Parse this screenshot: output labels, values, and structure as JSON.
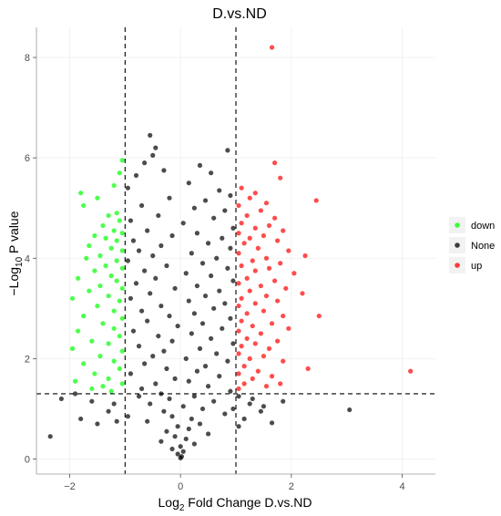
{
  "chart_data": {
    "type": "scatter",
    "title": "D.vs.ND",
    "xlabel": {
      "prefix": "Log",
      "sub": "2",
      "suffix": " Fold Change D.vs.ND"
    },
    "ylabel": {
      "prefix": "−Log",
      "sub": "10",
      "suffix": " P value"
    },
    "xlim": [
      -2.6,
      4.6
    ],
    "ylim": [
      -0.3,
      8.6
    ],
    "x_ticks": [
      -2,
      0,
      2,
      4
    ],
    "x_tick_labels": [
      "−2",
      "0",
      "2",
      "4"
    ],
    "y_ticks": [
      0,
      2,
      4,
      6,
      8
    ],
    "y_tick_labels": [
      "0",
      "2",
      "4",
      "6",
      "8"
    ],
    "grid": true,
    "fc_thresholds": [
      -1,
      1
    ],
    "p_threshold": 1.3,
    "legend_position": "right",
    "legend": [
      {
        "label": "down",
        "color": "#00ff00"
      },
      {
        "label": "None",
        "color": "#000000"
      },
      {
        "label": "up",
        "color": "#ff0000"
      }
    ],
    "series": [
      {
        "name": "down",
        "color": "#00ff00",
        "points": [
          [
            -1.05,
            5.95
          ],
          [
            -1.1,
            5.7
          ],
          [
            -1.2,
            5.45
          ],
          [
            -1.8,
            5.3
          ],
          [
            -1.5,
            5.2
          ],
          [
            -1.75,
            5.05
          ],
          [
            -1.15,
            4.9
          ],
          [
            -1.3,
            4.85
          ],
          [
            -1.1,
            4.75
          ],
          [
            -1.4,
            4.65
          ],
          [
            -1.2,
            4.55
          ],
          [
            -1.05,
            4.5
          ],
          [
            -1.55,
            4.45
          ],
          [
            -1.35,
            4.4
          ],
          [
            -1.15,
            4.35
          ],
          [
            -1.65,
            4.25
          ],
          [
            -1.25,
            4.2
          ],
          [
            -1.05,
            4.15
          ],
          [
            -1.45,
            4.05
          ],
          [
            -1.7,
            4.0
          ],
          [
            -1.15,
            3.95
          ],
          [
            -1.35,
            3.85
          ],
          [
            -1.05,
            3.8
          ],
          [
            -1.55,
            3.75
          ],
          [
            -1.25,
            3.65
          ],
          [
            -1.85,
            3.6
          ],
          [
            -1.15,
            3.55
          ],
          [
            -1.45,
            3.45
          ],
          [
            -1.05,
            3.4
          ],
          [
            -1.65,
            3.35
          ],
          [
            -1.3,
            3.25
          ],
          [
            -1.95,
            3.2
          ],
          [
            -1.1,
            3.15
          ],
          [
            -1.5,
            3.05
          ],
          [
            -1.2,
            2.95
          ],
          [
            -1.75,
            2.85
          ],
          [
            -1.05,
            2.8
          ],
          [
            -1.4,
            2.7
          ],
          [
            -1.2,
            2.6
          ],
          [
            -1.85,
            2.55
          ],
          [
            -1.1,
            2.45
          ],
          [
            -1.6,
            2.35
          ],
          [
            -1.3,
            2.3
          ],
          [
            -1.95,
            2.2
          ],
          [
            -1.05,
            2.15
          ],
          [
            -1.45,
            2.05
          ],
          [
            -1.2,
            1.95
          ],
          [
            -1.75,
            1.9
          ],
          [
            -1.1,
            1.8
          ],
          [
            -1.55,
            1.7
          ],
          [
            -1.3,
            1.6
          ],
          [
            -1.9,
            1.55
          ],
          [
            -1.05,
            1.5
          ],
          [
            -1.4,
            1.45
          ],
          [
            -1.6,
            1.4
          ],
          [
            -1.25,
            1.35
          ]
        ]
      },
      {
        "name": "None",
        "color": "#000000",
        "points": [
          [
            -0.55,
            6.45
          ],
          [
            -0.45,
            6.2
          ],
          [
            0.85,
            6.15
          ],
          [
            -0.5,
            6.05
          ],
          [
            -0.65,
            5.9
          ],
          [
            0.35,
            5.85
          ],
          [
            -0.3,
            5.75
          ],
          [
            0.55,
            5.7
          ],
          [
            -0.8,
            5.65
          ],
          [
            0.15,
            5.5
          ],
          [
            -0.95,
            5.4
          ],
          [
            0.7,
            5.35
          ],
          [
            0.9,
            5.25
          ],
          [
            -0.2,
            5.2
          ],
          [
            0.45,
            5.15
          ],
          [
            -0.7,
            5.05
          ],
          [
            0.25,
            5.0
          ],
          [
            0.8,
            4.95
          ],
          [
            -0.4,
            4.85
          ],
          [
            0.6,
            4.8
          ],
          [
            -0.9,
            4.75
          ],
          [
            0.05,
            4.7
          ],
          [
            0.95,
            4.6
          ],
          [
            -0.6,
            4.55
          ],
          [
            0.3,
            4.5
          ],
          [
            -0.15,
            4.45
          ],
          [
            0.75,
            4.4
          ],
          [
            -0.85,
            4.35
          ],
          [
            0.5,
            4.3
          ],
          [
            -0.35,
            4.25
          ],
          [
            0.9,
            4.2
          ],
          [
            -0.75,
            4.15
          ],
          [
            0.2,
            4.1
          ],
          [
            -0.5,
            4.05
          ],
          [
            0.65,
            4.0
          ],
          [
            -0.95,
            3.95
          ],
          [
            0.4,
            3.9
          ],
          [
            -0.25,
            3.85
          ],
          [
            0.85,
            3.8
          ],
          [
            -0.65,
            3.75
          ],
          [
            0.1,
            3.7
          ],
          [
            0.55,
            3.65
          ],
          [
            -0.45,
            3.6
          ],
          [
            0.95,
            3.55
          ],
          [
            -0.8,
            3.5
          ],
          [
            0.3,
            3.45
          ],
          [
            -0.1,
            3.4
          ],
          [
            0.7,
            3.35
          ],
          [
            -0.55,
            3.3
          ],
          [
            0.45,
            3.25
          ],
          [
            -0.9,
            3.2
          ],
          [
            0.15,
            3.15
          ],
          [
            0.8,
            3.1
          ],
          [
            -0.35,
            3.05
          ],
          [
            0.6,
            3.0
          ],
          [
            -0.7,
            2.95
          ],
          [
            0.25,
            2.9
          ],
          [
            -0.2,
            2.85
          ],
          [
            0.9,
            2.8
          ],
          [
            -0.6,
            2.75
          ],
          [
            0.4,
            2.7
          ],
          [
            -0.05,
            2.65
          ],
          [
            0.75,
            2.6
          ],
          [
            -0.85,
            2.55
          ],
          [
            0.2,
            2.5
          ],
          [
            -0.4,
            2.45
          ],
          [
            0.55,
            2.4
          ],
          [
            -0.15,
            2.35
          ],
          [
            0.95,
            2.3
          ],
          [
            -0.75,
            2.25
          ],
          [
            0.35,
            2.2
          ],
          [
            -0.3,
            2.15
          ],
          [
            0.65,
            2.1
          ],
          [
            -0.5,
            2.05
          ],
          [
            0.1,
            2.0
          ],
          [
            0.85,
            1.95
          ],
          [
            -0.65,
            1.9
          ],
          [
            0.45,
            1.85
          ],
          [
            -0.25,
            1.8
          ],
          [
            0.3,
            1.75
          ],
          [
            -0.9,
            1.7
          ],
          [
            0.7,
            1.65
          ],
          [
            -0.1,
            1.6
          ],
          [
            0.15,
            1.55
          ],
          [
            -0.45,
            1.5
          ],
          [
            0.5,
            1.45
          ],
          [
            -0.7,
            1.4
          ],
          [
            0.9,
            1.35
          ],
          [
            -0.35,
            1.3
          ],
          [
            0.25,
            1.25
          ],
          [
            -0.2,
            1.2
          ],
          [
            0.6,
            1.15
          ],
          [
            -0.55,
            1.1
          ],
          [
            0.05,
            1.05
          ],
          [
            0.4,
            1.0
          ],
          [
            -0.3,
            0.95
          ],
          [
            0.8,
            0.9
          ],
          [
            -0.15,
            0.85
          ],
          [
            0.2,
            0.8
          ],
          [
            -0.6,
            0.75
          ],
          [
            0.35,
            0.7
          ],
          [
            -0.05,
            0.65
          ],
          [
            0.15,
            0.6
          ],
          [
            -0.25,
            0.55
          ],
          [
            0.5,
            0.5
          ],
          [
            -0.1,
            0.45
          ],
          [
            0.1,
            0.4
          ],
          [
            -0.35,
            0.35
          ],
          [
            0.25,
            0.3
          ],
          [
            0.0,
            0.25
          ],
          [
            -0.15,
            0.2
          ],
          [
            0.05,
            0.15
          ],
          [
            -0.05,
            0.1
          ],
          [
            0.02,
            0.05
          ],
          [
            0.0,
            0.02
          ],
          [
            -2.35,
            0.45
          ],
          [
            -2.15,
            1.2
          ],
          [
            -1.5,
            0.7
          ],
          [
            -1.15,
            0.75
          ],
          [
            -1.9,
            1.3
          ],
          [
            -1.6,
            1.15
          ],
          [
            -1.2,
            1.1
          ],
          [
            -1.8,
            0.8
          ],
          [
            -1.3,
            0.95
          ],
          [
            1.05,
            0.65
          ],
          [
            1.25,
            1.1
          ],
          [
            1.45,
            0.95
          ],
          [
            1.65,
            0.72
          ],
          [
            1.3,
            1.2
          ],
          [
            1.05,
            1.25
          ],
          [
            3.05,
            0.98
          ],
          [
            1.85,
            1.15
          ],
          [
            1.5,
            1.05
          ],
          [
            -0.75,
            1.25
          ],
          [
            0.95,
            1.0
          ],
          [
            -0.95,
            0.85
          ],
          [
            1.15,
            0.8
          ]
        ]
      },
      {
        "name": "up",
        "color": "#ff0000",
        "points": [
          [
            1.65,
            8.2
          ],
          [
            1.7,
            5.9
          ],
          [
            1.8,
            5.6
          ],
          [
            1.1,
            5.4
          ],
          [
            1.35,
            5.3
          ],
          [
            1.25,
            5.2
          ],
          [
            2.45,
            5.15
          ],
          [
            1.55,
            5.1
          ],
          [
            1.05,
            5.05
          ],
          [
            1.45,
            4.95
          ],
          [
            1.2,
            4.85
          ],
          [
            1.7,
            4.8
          ],
          [
            1.1,
            4.7
          ],
          [
            1.6,
            4.65
          ],
          [
            1.35,
            4.6
          ],
          [
            1.85,
            4.55
          ],
          [
            1.05,
            4.5
          ],
          [
            1.5,
            4.45
          ],
          [
            1.25,
            4.4
          ],
          [
            1.75,
            4.35
          ],
          [
            1.15,
            4.3
          ],
          [
            1.4,
            4.2
          ],
          [
            1.95,
            4.15
          ],
          [
            1.05,
            4.1
          ],
          [
            2.25,
            4.05
          ],
          [
            1.55,
            4.0
          ],
          [
            1.3,
            3.95
          ],
          [
            1.8,
            3.9
          ],
          [
            1.1,
            3.85
          ],
          [
            1.6,
            3.8
          ],
          [
            1.35,
            3.75
          ],
          [
            2.05,
            3.7
          ],
          [
            1.2,
            3.6
          ],
          [
            1.7,
            3.55
          ],
          [
            1.05,
            3.5
          ],
          [
            1.45,
            3.45
          ],
          [
            1.9,
            3.4
          ],
          [
            1.25,
            3.35
          ],
          [
            2.2,
            3.3
          ],
          [
            1.55,
            3.25
          ],
          [
            1.1,
            3.2
          ],
          [
            1.75,
            3.15
          ],
          [
            1.35,
            3.1
          ],
          [
            1.05,
            3.05
          ],
          [
            2.5,
            2.85
          ],
          [
            1.5,
            2.95
          ],
          [
            1.2,
            2.9
          ],
          [
            1.85,
            2.85
          ],
          [
            1.1,
            2.75
          ],
          [
            1.65,
            2.7
          ],
          [
            1.3,
            2.65
          ],
          [
            1.95,
            2.6
          ],
          [
            1.05,
            2.55
          ],
          [
            1.45,
            2.5
          ],
          [
            1.2,
            2.4
          ],
          [
            1.75,
            2.35
          ],
          [
            1.35,
            2.3
          ],
          [
            1.1,
            2.25
          ],
          [
            1.6,
            2.2
          ],
          [
            1.05,
            2.1
          ],
          [
            1.5,
            2.05
          ],
          [
            1.25,
            2.0
          ],
          [
            1.85,
            1.95
          ],
          [
            1.15,
            1.85
          ],
          [
            2.3,
            1.8
          ],
          [
            1.4,
            1.75
          ],
          [
            1.05,
            1.7
          ],
          [
            1.65,
            1.65
          ],
          [
            1.3,
            1.6
          ],
          [
            1.15,
            1.5
          ],
          [
            1.55,
            1.45
          ],
          [
            1.05,
            1.4
          ],
          [
            4.15,
            1.75
          ],
          [
            1.8,
            1.5
          ]
        ]
      }
    ]
  }
}
